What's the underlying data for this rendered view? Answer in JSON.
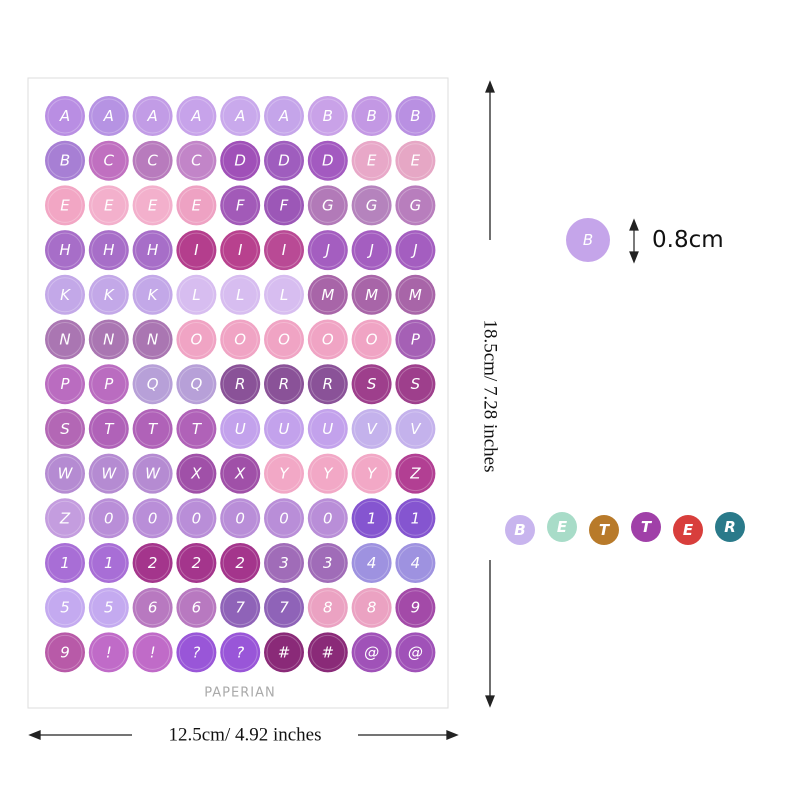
{
  "sheet": {
    "rows": [
      [
        "A",
        "A",
        "A",
        "A",
        "A",
        "A",
        "B",
        "B",
        "B"
      ],
      [
        "B",
        "C",
        "C",
        "C",
        "D",
        "D",
        "D",
        "E",
        "E"
      ],
      [
        "E",
        "E",
        "E",
        "E",
        "F",
        "F",
        "G",
        "G",
        "G"
      ],
      [
        "H",
        "H",
        "H",
        "I",
        "I",
        "I",
        "J",
        "J",
        "J"
      ],
      [
        "K",
        "K",
        "K",
        "L",
        "L",
        "L",
        "M",
        "M",
        "M"
      ],
      [
        "N",
        "N",
        "N",
        "O",
        "O",
        "O",
        "O",
        "O",
        "P"
      ],
      [
        "P",
        "P",
        "Q",
        "Q",
        "R",
        "R",
        "R",
        "S",
        "S"
      ],
      [
        "S",
        "T",
        "T",
        "T",
        "U",
        "U",
        "U",
        "V",
        "V"
      ],
      [
        "W",
        "W",
        "W",
        "X",
        "X",
        "Y",
        "Y",
        "Y",
        "Z"
      ],
      [
        "Z",
        "0",
        "0",
        "0",
        "0",
        "0",
        "0",
        "1",
        "1"
      ],
      [
        "1",
        "1",
        "2",
        "2",
        "2",
        "3",
        "3",
        "4",
        "4"
      ],
      [
        "5",
        "5",
        "6",
        "6",
        "7",
        "7",
        "8",
        "8",
        "9"
      ],
      [
        "9",
        "!",
        "!",
        "?",
        "?",
        "#",
        "#",
        "@",
        "@"
      ]
    ],
    "colors": [
      [
        "#b98ee3",
        "#b693e3",
        "#c29ce6",
        "#c7a3ea",
        "#c9a9ec",
        "#c5a5ea",
        "#c9a2e8",
        "#c398e4",
        "#b990e2"
      ],
      [
        "#a77fd4",
        "#c070c0",
        "#b87bbd",
        "#c285c8",
        "#a050b8",
        "#9f5dbe",
        "#a35ac0",
        "#e8a8c8",
        "#e6a7c5"
      ],
      [
        "#f2a6c4",
        "#f3b0cc",
        "#f3b0cc",
        "#eea2c3",
        "#a25ab8",
        "#9c57b7",
        "#b27ab8",
        "#b583bd",
        "#b87ebd"
      ],
      [
        "#a76ec8",
        "#a76ec8",
        "#a76ec8",
        "#b43e8d",
        "#b8418e",
        "#b94a95",
        "#a45ec0",
        "#a45ec0",
        "#a45ec0"
      ],
      [
        "#c3a8e8",
        "#c3a8e8",
        "#c3a8e8",
        "#d7bdf0",
        "#d7bdf0",
        "#d7bdf0",
        "#a865a8",
        "#a865a8",
        "#a865a8"
      ],
      [
        "#aa76b2",
        "#aa76b2",
        "#aa76b2",
        "#f0a4c4",
        "#f0a4c4",
        "#f0a4c4",
        "#f0a4c4",
        "#f0a4c4",
        "#a560b5"
      ],
      [
        "#ba6cc0",
        "#ba6cc0",
        "#b7a0d8",
        "#b7a0d8",
        "#8a5298",
        "#8a5298",
        "#8a5298",
        "#9e3f8c",
        "#9e3f8c"
      ],
      [
        "#b367b5",
        "#b062b8",
        "#b062b8",
        "#b062b8",
        "#c3a2ec",
        "#c3a2ec",
        "#c3a2ec",
        "#c4b2ec",
        "#c4b2ec"
      ],
      [
        "#b58bd2",
        "#b58bd2",
        "#b58bd2",
        "#a050a8",
        "#a050a8",
        "#f2a8c6",
        "#f2a8c6",
        "#f2a8c6",
        "#b23f93"
      ],
      [
        "#c49ddf",
        "#b98ed8",
        "#b98ed8",
        "#b98ed8",
        "#b98ed8",
        "#b98ed8",
        "#b98ed8",
        "#8555d0",
        "#8555d0"
      ],
      [
        "#a86ed6",
        "#a86ed6",
        "#a4358c",
        "#a4358c",
        "#a4358c",
        "#a06cb8",
        "#a06cb8",
        "#9e92e0",
        "#9e92e0"
      ],
      [
        "#c4aaf0",
        "#c4aaf0",
        "#b879c0",
        "#b879c0",
        "#8f63b8",
        "#8f63b8",
        "#eba2c2",
        "#eba2c2",
        "#a34aa8"
      ],
      [
        "#b85aa8",
        "#c06bc8",
        "#c06bc8",
        "#9956d8",
        "#9956d8",
        "#8a2a78",
        "#8a2a78",
        "#a052b8",
        "#a052b8"
      ]
    ],
    "brand": "PAPERIAN"
  },
  "dimensions": {
    "width": "12.5cm/ 4.92 inches",
    "height": "18.5cm/ 7.28 inches"
  },
  "sample": {
    "label": "B",
    "size": "0.8cm",
    "color": "#c5a5ea"
  },
  "example": {
    "letters": [
      "B",
      "E",
      "T",
      "T",
      "E",
      "R"
    ],
    "colors": [
      "#c8b5ee",
      "#a8dcc8",
      "#b87a2a",
      "#a040a8",
      "#d83e3c",
      "#2a7a8a"
    ]
  }
}
